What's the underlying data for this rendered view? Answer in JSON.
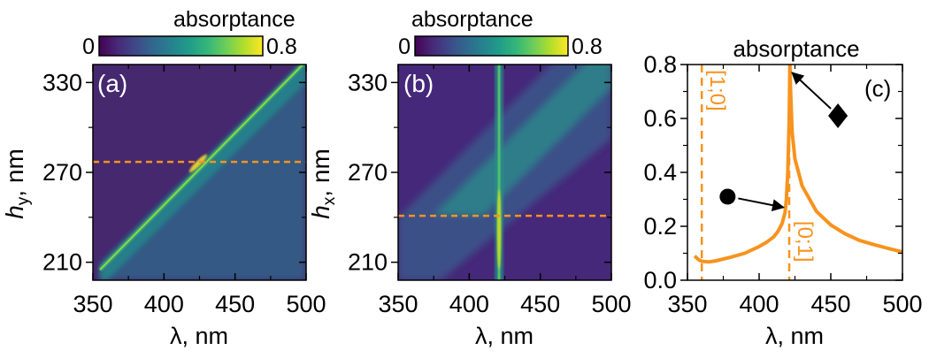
{
  "colors": {
    "orange": "#f7931e",
    "viridis": [
      "#440154",
      "#482878",
      "#3e4989",
      "#31688e",
      "#26828e",
      "#1f9e89",
      "#35b779",
      "#6ece58",
      "#b5de2b",
      "#fde725"
    ]
  },
  "chart_data": [
    {
      "type": "heatmap",
      "panel_label": "(a)",
      "colorbar_title": "absorptance",
      "colorbar_min_label": "0",
      "colorbar_max_label": "0.8",
      "colorbar_range": [
        0,
        0.8
      ],
      "xlabel": "λ, nm",
      "ylabel_main": "h",
      "ylabel_sub": "y",
      "ylabel_rest": ", nm",
      "xlim": [
        350,
        500
      ],
      "ylim": [
        198,
        342
      ],
      "xticks": [
        350,
        400,
        450,
        500
      ],
      "yticks": [
        210,
        270,
        330
      ],
      "xtick_labels": [
        "350",
        "400",
        "450",
        "500"
      ],
      "ytick_labels": [
        "210",
        "270",
        "330"
      ],
      "ridge": {
        "x_start": 355,
        "y_start": 205,
        "slope": 0.96,
        "peak_at": [
          424,
          276
        ]
      },
      "cut_line_y": 277
    },
    {
      "type": "heatmap",
      "panel_label": "(b)",
      "colorbar_title": "absorptance",
      "colorbar_min_label": "0",
      "colorbar_max_label": "0.8",
      "colorbar_range": [
        0,
        0.8
      ],
      "xlabel": "λ, nm",
      "ylabel_main": "h",
      "ylabel_sub": "x",
      "ylabel_rest": ", nm",
      "xlim": [
        350,
        500
      ],
      "ylim": [
        198,
        342
      ],
      "xticks": [
        350,
        400,
        450,
        500
      ],
      "yticks": [
        210,
        270,
        330
      ],
      "xtick_labels": [
        "350",
        "400",
        "450",
        "500"
      ],
      "ytick_labels": [
        "210",
        "270",
        "330"
      ],
      "vertical_resonance_x": 421,
      "diagonal_band": {
        "x_start": 350,
        "y_start": 210,
        "slope": 0.95
      },
      "cut_line_y": 241
    },
    {
      "type": "line",
      "panel_label": "(c)",
      "title": "absorptance",
      "xlabel": "λ, nm",
      "xlim": [
        350,
        500
      ],
      "ylim": [
        0,
        0.8
      ],
      "xticks": [
        350,
        400,
        450,
        500
      ],
      "yticks": [
        0.0,
        0.2,
        0.4,
        0.6,
        0.8
      ],
      "xtick_labels": [
        "350",
        "400",
        "450",
        "500"
      ],
      "ytick_labels": [
        "0.0",
        "0.2",
        "0.4",
        "0.6",
        "0.8"
      ],
      "series": [
        {
          "name": "absorptance",
          "x": [
            355,
            358,
            360,
            365,
            370,
            380,
            390,
            400,
            405,
            410,
            413,
            416,
            418,
            419,
            420,
            421,
            421.5,
            422,
            423,
            425,
            430,
            440,
            450,
            460,
            470,
            480,
            490,
            500
          ],
          "y": [
            0.09,
            0.075,
            0.07,
            0.068,
            0.072,
            0.085,
            0.1,
            0.125,
            0.14,
            0.16,
            0.18,
            0.21,
            0.25,
            0.3,
            0.4,
            0.6,
            0.8,
            0.7,
            0.55,
            0.45,
            0.35,
            0.255,
            0.205,
            0.172,
            0.148,
            0.132,
            0.118,
            0.105
          ]
        }
      ],
      "rayleigh_lines": [
        {
          "x": 360,
          "label": "[1;0]"
        },
        {
          "x": 421,
          "label": "[0;1]"
        }
      ],
      "markers": [
        {
          "symbol": "circle",
          "at": [
            378,
            0.31
          ],
          "points_to": [
            417,
            0.27
          ]
        },
        {
          "symbol": "diamond",
          "at": [
            455,
            0.61
          ],
          "points_to": [
            423,
            0.77
          ]
        }
      ]
    }
  ]
}
